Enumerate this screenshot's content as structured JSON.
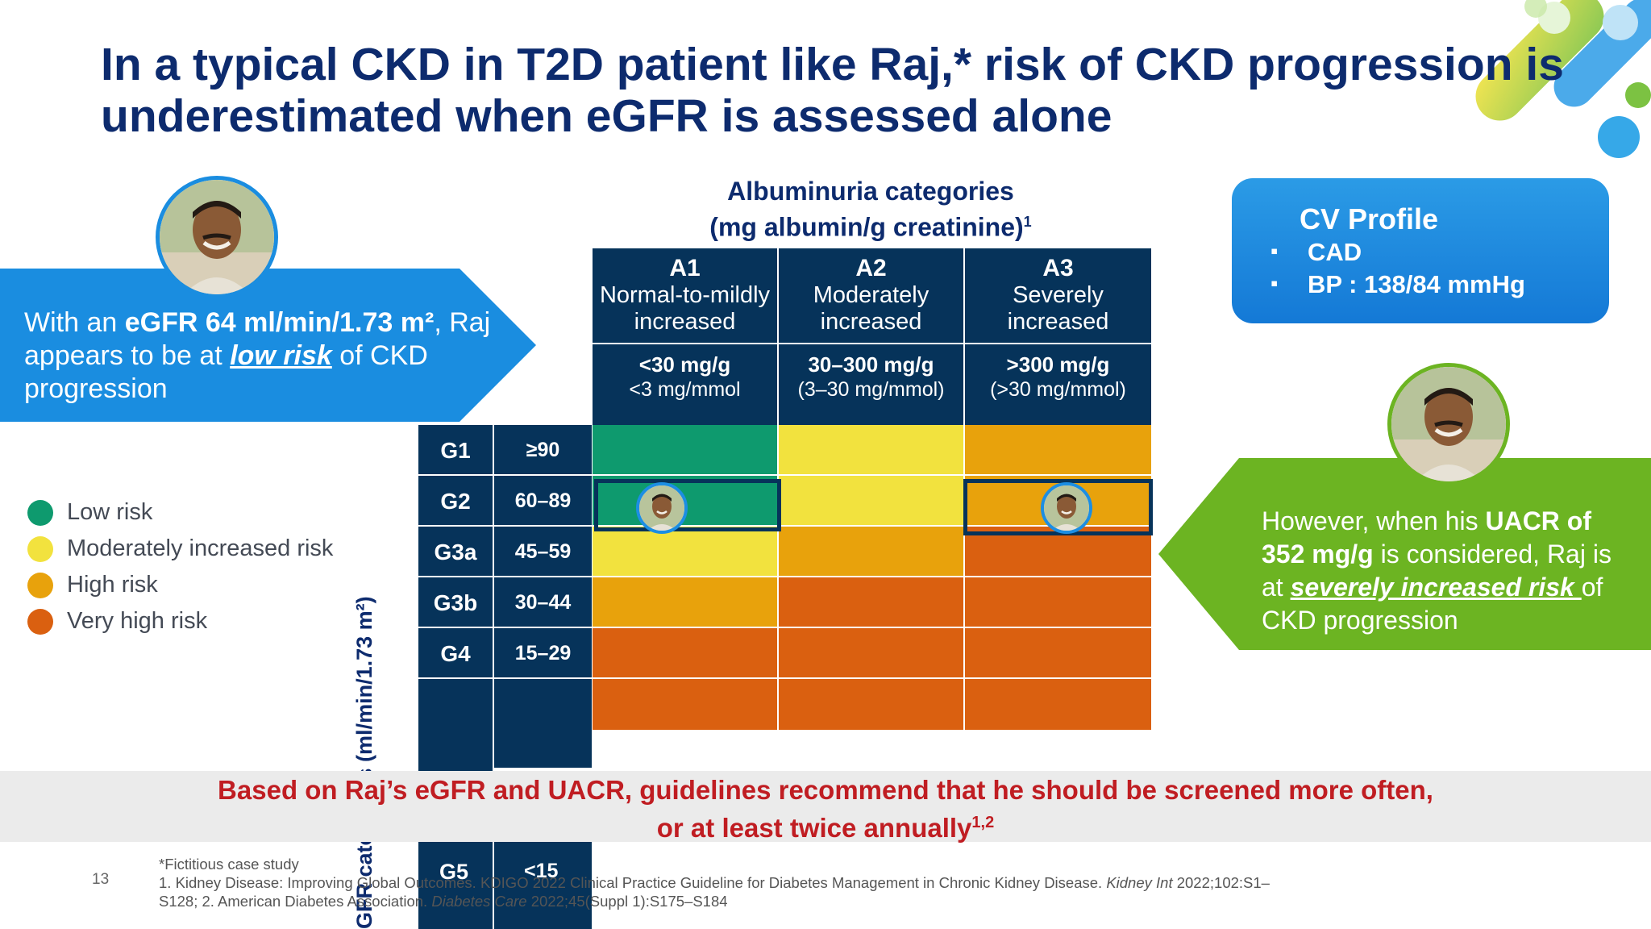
{
  "title": {
    "line1": "In a typical CKD in T2D patient like Raj,* risk of CKD progression is",
    "line2": "underestimated when eGFR is assessed alone"
  },
  "left_callout": {
    "text_pre": "With an ",
    "egfr_bold": "eGFR 64 ml/min/1.73 m²",
    "text_mid": ", Raj appears to be at ",
    "risk_text": "low risk",
    "text_post": " of CKD progression"
  },
  "legend": [
    {
      "label": "Low risk",
      "color": "#0e9a6e"
    },
    {
      "label": "Moderately increased risk",
      "color": "#f2e23e"
    },
    {
      "label": "High risk",
      "color": "#e8a20c"
    },
    {
      "label": "Very high risk",
      "color": "#da6010"
    }
  ],
  "albuminuria": {
    "title_line1": "Albuminuria categories",
    "title_line2": "(mg albumin/g creatinine)",
    "title_sup": "1",
    "columns": [
      {
        "code": "A1",
        "desc1": "Normal-to-mildly",
        "desc2": "increased",
        "mg": "<30 mg/g",
        "mmol": "<3 mg/mmol"
      },
      {
        "code": "A2",
        "desc1": "Moderately",
        "desc2": "increased",
        "mg": "30–300 mg/g",
        "mmol": "(3–30 mg/mmol)"
      },
      {
        "code": "A3",
        "desc1": "Severely",
        "desc2": "increased",
        "mg": ">300 mg/g",
        "mmol": "(>30 mg/mmol)"
      }
    ]
  },
  "egfr": {
    "axis_label": "GFR categories (ml/min/1.73 m²)",
    "rows": [
      {
        "code": "G1",
        "range": "≥90"
      },
      {
        "code": "G2",
        "range": "60–89"
      },
      {
        "code": "G3a",
        "range": "45–59"
      },
      {
        "code": "G3b",
        "range": "30–44"
      },
      {
        "code": "G4",
        "range": "15–29"
      }
    ],
    "g5": {
      "code": "G5",
      "range": "<15"
    }
  },
  "risk_colors": {
    "low": "#0e9a6e",
    "moderate": "#f2e23e",
    "high": "#e8a20c",
    "very_high": "#da6010"
  },
  "cv_profile": {
    "title": "CV Profile",
    "items": [
      "CAD",
      "BP : 138/84 mmHg"
    ]
  },
  "right_callout": {
    "text_pre": "However, when his ",
    "uacr_bold": "UACR of 352 mg/g",
    "text_mid": " is considered, Raj is at ",
    "risk_text": "severely increased risk ",
    "text_post": "of CKD progression"
  },
  "banner": {
    "line1": "Based on Raj’s eGFR and UACR, guidelines recommend that he should be screened more often,",
    "line2": "or at least twice annually",
    "sup": "1,2"
  },
  "slide_number": "13",
  "footnotes": {
    "line1": "*Fictitious case study",
    "line2a": "1. Kidney Disease: Improving Global Outcomes. KDIGO 2022 Clinical Practice Guideline for Diabetes Management in Chronic Kidney Disease. ",
    "line2_journal": "Kidney Int",
    "line2b": " 2022;102:S1–",
    "line3a": "S128; 2. American Diabetes Association. ",
    "line3_journal": "Diabetes Care",
    "line3b": " 2022;45(Suppl 1):S175–S184"
  }
}
